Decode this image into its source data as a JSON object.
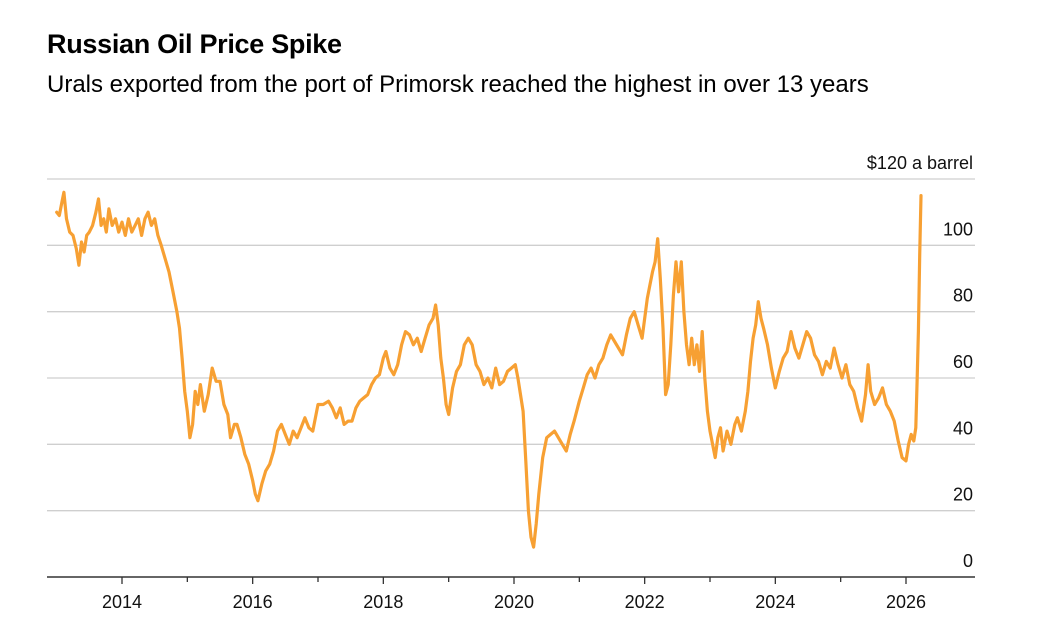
{
  "chart_data": {
    "type": "line",
    "title": "Russian Oil Price Spike",
    "subtitle": "Urals exported from the port of Primorsk reached the highest in over 13 years",
    "xlabel": "",
    "ylabel": "",
    "y_unit_label": "$120 a barrel",
    "ylim": [
      0,
      120
    ],
    "xlim": [
      2012.98,
      2027.0
    ],
    "grid": true,
    "legend": "none",
    "y_ticks": [
      {
        "value": 0,
        "label": "0"
      },
      {
        "value": 20,
        "label": "20"
      },
      {
        "value": 40,
        "label": "40"
      },
      {
        "value": 60,
        "label": "60"
      },
      {
        "value": 80,
        "label": "80"
      },
      {
        "value": 100,
        "label": "100"
      },
      {
        "value": 120,
        "label": "$120 a barrel"
      }
    ],
    "x_ticks": [
      {
        "value": 2014,
        "label": "2014"
      },
      {
        "value": 2016,
        "label": "2016"
      },
      {
        "value": 2018,
        "label": "2018"
      },
      {
        "value": 2020,
        "label": "2020"
      },
      {
        "value": 2022,
        "label": "2022"
      },
      {
        "value": 2024,
        "label": "2024"
      },
      {
        "value": 2026,
        "label": "2026"
      }
    ],
    "x_minor_ticks": [
      2015,
      2017,
      2019,
      2021,
      2023,
      2025
    ],
    "series": [
      {
        "name": "Urals (Primorsk)",
        "color": "#f7a033",
        "points": [
          [
            2013.0,
            110
          ],
          [
            2013.04,
            109
          ],
          [
            2013.08,
            113
          ],
          [
            2013.11,
            116
          ],
          [
            2013.15,
            108
          ],
          [
            2013.2,
            104
          ],
          [
            2013.25,
            103
          ],
          [
            2013.3,
            99
          ],
          [
            2013.34,
            94
          ],
          [
            2013.38,
            101
          ],
          [
            2013.42,
            98
          ],
          [
            2013.46,
            103
          ],
          [
            2013.5,
            104
          ],
          [
            2013.55,
            106
          ],
          [
            2013.6,
            110
          ],
          [
            2013.64,
            114
          ],
          [
            2013.68,
            106
          ],
          [
            2013.72,
            108
          ],
          [
            2013.76,
            104
          ],
          [
            2013.8,
            111
          ],
          [
            2013.85,
            106
          ],
          [
            2013.9,
            108
          ],
          [
            2013.95,
            104
          ],
          [
            2014.0,
            107
          ],
          [
            2014.05,
            103
          ],
          [
            2014.1,
            108
          ],
          [
            2014.15,
            104
          ],
          [
            2014.2,
            106
          ],
          [
            2014.25,
            108
          ],
          [
            2014.3,
            103
          ],
          [
            2014.35,
            108
          ],
          [
            2014.4,
            110
          ],
          [
            2014.45,
            106
          ],
          [
            2014.5,
            108
          ],
          [
            2014.55,
            103
          ],
          [
            2014.6,
            100
          ],
          [
            2014.66,
            96
          ],
          [
            2014.72,
            92
          ],
          [
            2014.78,
            86
          ],
          [
            2014.84,
            80
          ],
          [
            2014.88,
            75
          ],
          [
            2014.92,
            66
          ],
          [
            2014.96,
            56
          ],
          [
            2015.0,
            50
          ],
          [
            2015.04,
            42
          ],
          [
            2015.08,
            46
          ],
          [
            2015.12,
            56
          ],
          [
            2015.16,
            52
          ],
          [
            2015.2,
            58
          ],
          [
            2015.26,
            50
          ],
          [
            2015.32,
            55
          ],
          [
            2015.38,
            63
          ],
          [
            2015.44,
            59
          ],
          [
            2015.5,
            59
          ],
          [
            2015.56,
            52
          ],
          [
            2015.62,
            49
          ],
          [
            2015.66,
            42
          ],
          [
            2015.72,
            46
          ],
          [
            2015.76,
            46
          ],
          [
            2015.82,
            42
          ],
          [
            2015.88,
            37
          ],
          [
            2015.94,
            34
          ],
          [
            2016.0,
            29
          ],
          [
            2016.04,
            25
          ],
          [
            2016.08,
            23
          ],
          [
            2016.14,
            28
          ],
          [
            2016.2,
            32
          ],
          [
            2016.26,
            34
          ],
          [
            2016.32,
            38
          ],
          [
            2016.38,
            44
          ],
          [
            2016.44,
            46
          ],
          [
            2016.5,
            43
          ],
          [
            2016.56,
            40
          ],
          [
            2016.62,
            44
          ],
          [
            2016.68,
            42
          ],
          [
            2016.74,
            45
          ],
          [
            2016.8,
            48
          ],
          [
            2016.86,
            45
          ],
          [
            2016.92,
            44
          ],
          [
            2017.0,
            52
          ],
          [
            2017.08,
            52
          ],
          [
            2017.16,
            53
          ],
          [
            2017.22,
            51
          ],
          [
            2017.28,
            48
          ],
          [
            2017.34,
            51
          ],
          [
            2017.4,
            46
          ],
          [
            2017.46,
            47
          ],
          [
            2017.52,
            47
          ],
          [
            2017.58,
            51
          ],
          [
            2017.64,
            53
          ],
          [
            2017.7,
            54
          ],
          [
            2017.76,
            55
          ],
          [
            2017.82,
            58
          ],
          [
            2017.88,
            60
          ],
          [
            2017.94,
            61
          ],
          [
            2018.0,
            66
          ],
          [
            2018.04,
            68
          ],
          [
            2018.1,
            63
          ],
          [
            2018.16,
            61
          ],
          [
            2018.22,
            64
          ],
          [
            2018.28,
            70
          ],
          [
            2018.34,
            74
          ],
          [
            2018.4,
            73
          ],
          [
            2018.46,
            70
          ],
          [
            2018.52,
            72
          ],
          [
            2018.58,
            68
          ],
          [
            2018.64,
            72
          ],
          [
            2018.7,
            76
          ],
          [
            2018.76,
            78
          ],
          [
            2018.8,
            82
          ],
          [
            2018.84,
            76
          ],
          [
            2018.88,
            66
          ],
          [
            2018.92,
            60
          ],
          [
            2018.96,
            52
          ],
          [
            2019.0,
            49
          ],
          [
            2019.06,
            57
          ],
          [
            2019.12,
            62
          ],
          [
            2019.18,
            64
          ],
          [
            2019.24,
            70
          ],
          [
            2019.3,
            72
          ],
          [
            2019.36,
            70
          ],
          [
            2019.42,
            64
          ],
          [
            2019.48,
            62
          ],
          [
            2019.54,
            58
          ],
          [
            2019.6,
            60
          ],
          [
            2019.66,
            57
          ],
          [
            2019.72,
            63
          ],
          [
            2019.78,
            58
          ],
          [
            2019.84,
            59
          ],
          [
            2019.9,
            62
          ],
          [
            2019.96,
            63
          ],
          [
            2020.02,
            64
          ],
          [
            2020.06,
            60
          ],
          [
            2020.1,
            55
          ],
          [
            2020.14,
            50
          ],
          [
            2020.18,
            35
          ],
          [
            2020.22,
            20
          ],
          [
            2020.26,
            12
          ],
          [
            2020.3,
            9
          ],
          [
            2020.34,
            16
          ],
          [
            2020.38,
            25
          ],
          [
            2020.44,
            36
          ],
          [
            2020.5,
            42
          ],
          [
            2020.56,
            43
          ],
          [
            2020.62,
            44
          ],
          [
            2020.68,
            42
          ],
          [
            2020.74,
            40
          ],
          [
            2020.8,
            38
          ],
          [
            2020.86,
            43
          ],
          [
            2020.92,
            47
          ],
          [
            2021.0,
            53
          ],
          [
            2021.06,
            57
          ],
          [
            2021.12,
            61
          ],
          [
            2021.18,
            63
          ],
          [
            2021.24,
            60
          ],
          [
            2021.3,
            64
          ],
          [
            2021.36,
            66
          ],
          [
            2021.42,
            70
          ],
          [
            2021.48,
            73
          ],
          [
            2021.54,
            71
          ],
          [
            2021.6,
            69
          ],
          [
            2021.66,
            67
          ],
          [
            2021.72,
            73
          ],
          [
            2021.78,
            78
          ],
          [
            2021.84,
            80
          ],
          [
            2021.9,
            76
          ],
          [
            2021.96,
            72
          ],
          [
            2022.0,
            78
          ],
          [
            2022.04,
            84
          ],
          [
            2022.08,
            88
          ],
          [
            2022.12,
            92
          ],
          [
            2022.16,
            95
          ],
          [
            2022.2,
            102
          ],
          [
            2022.24,
            90
          ],
          [
            2022.28,
            75
          ],
          [
            2022.32,
            55
          ],
          [
            2022.36,
            58
          ],
          [
            2022.4,
            70
          ],
          [
            2022.44,
            85
          ],
          [
            2022.48,
            95
          ],
          [
            2022.52,
            86
          ],
          [
            2022.56,
            95
          ],
          [
            2022.6,
            80
          ],
          [
            2022.64,
            70
          ],
          [
            2022.68,
            64
          ],
          [
            2022.72,
            72
          ],
          [
            2022.76,
            64
          ],
          [
            2022.8,
            70
          ],
          [
            2022.84,
            62
          ],
          [
            2022.88,
            74
          ],
          [
            2022.92,
            60
          ],
          [
            2022.96,
            50
          ],
          [
            2023.0,
            44
          ],
          [
            2023.04,
            40
          ],
          [
            2023.08,
            36
          ],
          [
            2023.12,
            42
          ],
          [
            2023.16,
            45
          ],
          [
            2023.2,
            38
          ],
          [
            2023.26,
            44
          ],
          [
            2023.32,
            40
          ],
          [
            2023.38,
            46
          ],
          [
            2023.42,
            48
          ],
          [
            2023.48,
            44
          ],
          [
            2023.54,
            50
          ],
          [
            2023.58,
            56
          ],
          [
            2023.62,
            65
          ],
          [
            2023.66,
            72
          ],
          [
            2023.7,
            76
          ],
          [
            2023.74,
            83
          ],
          [
            2023.78,
            78
          ],
          [
            2023.82,
            75
          ],
          [
            2023.88,
            70
          ],
          [
            2023.94,
            63
          ],
          [
            2024.0,
            57
          ],
          [
            2024.06,
            62
          ],
          [
            2024.12,
            66
          ],
          [
            2024.18,
            68
          ],
          [
            2024.24,
            74
          ],
          [
            2024.3,
            69
          ],
          [
            2024.36,
            66
          ],
          [
            2024.42,
            70
          ],
          [
            2024.48,
            74
          ],
          [
            2024.54,
            72
          ],
          [
            2024.6,
            67
          ],
          [
            2024.66,
            65
          ],
          [
            2024.72,
            61
          ],
          [
            2024.78,
            65
          ],
          [
            2024.84,
            63
          ],
          [
            2024.9,
            69
          ],
          [
            2024.96,
            64
          ],
          [
            2025.02,
            60
          ],
          [
            2025.08,
            64
          ],
          [
            2025.14,
            58
          ],
          [
            2025.2,
            56
          ],
          [
            2025.26,
            51
          ],
          [
            2025.32,
            47
          ],
          [
            2025.38,
            55
          ],
          [
            2025.42,
            64
          ],
          [
            2025.46,
            56
          ],
          [
            2025.52,
            52
          ],
          [
            2025.58,
            54
          ],
          [
            2025.64,
            57
          ],
          [
            2025.7,
            52
          ],
          [
            2025.76,
            50
          ],
          [
            2025.82,
            47
          ],
          [
            2025.88,
            41
          ],
          [
            2025.94,
            36
          ],
          [
            2026.0,
            35
          ],
          [
            2026.04,
            40
          ],
          [
            2026.08,
            43
          ],
          [
            2026.12,
            41
          ],
          [
            2026.15,
            45
          ],
          [
            2026.17,
            59
          ],
          [
            2026.19,
            74
          ],
          [
            2026.21,
            97
          ],
          [
            2026.23,
            115
          ]
        ]
      }
    ]
  }
}
